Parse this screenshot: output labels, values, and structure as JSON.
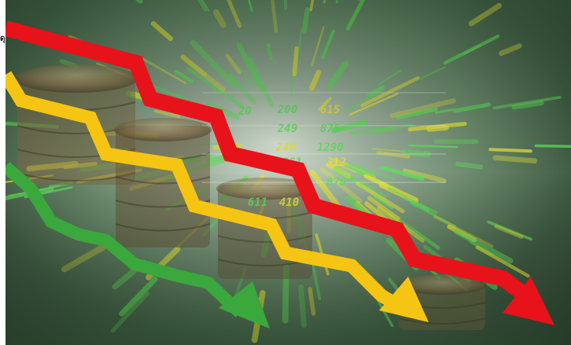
{
  "image": {
    "description_text": "",
    "board_numbers": [
      {
        "text": "200"
      },
      {
        "text": "615"
      },
      {
        "text": "249"
      },
      {
        "text": "875"
      },
      {
        "text": "240"
      },
      {
        "text": "1290"
      },
      {
        "text": "351"
      },
      {
        "text": "312"
      },
      {
        "text": "870"
      },
      {
        "text": "611"
      },
      {
        "text": "410"
      },
      {
        "text": "20"
      }
    ],
    "edge_chars": "ดุ"
  },
  "colors": {
    "red_arrow": "#e8121a",
    "yellow_arrow": "#f6c513",
    "green_arrow": "#3aa83c",
    "board_green": "#5fe05a",
    "board_yellow": "#e6e23a"
  }
}
